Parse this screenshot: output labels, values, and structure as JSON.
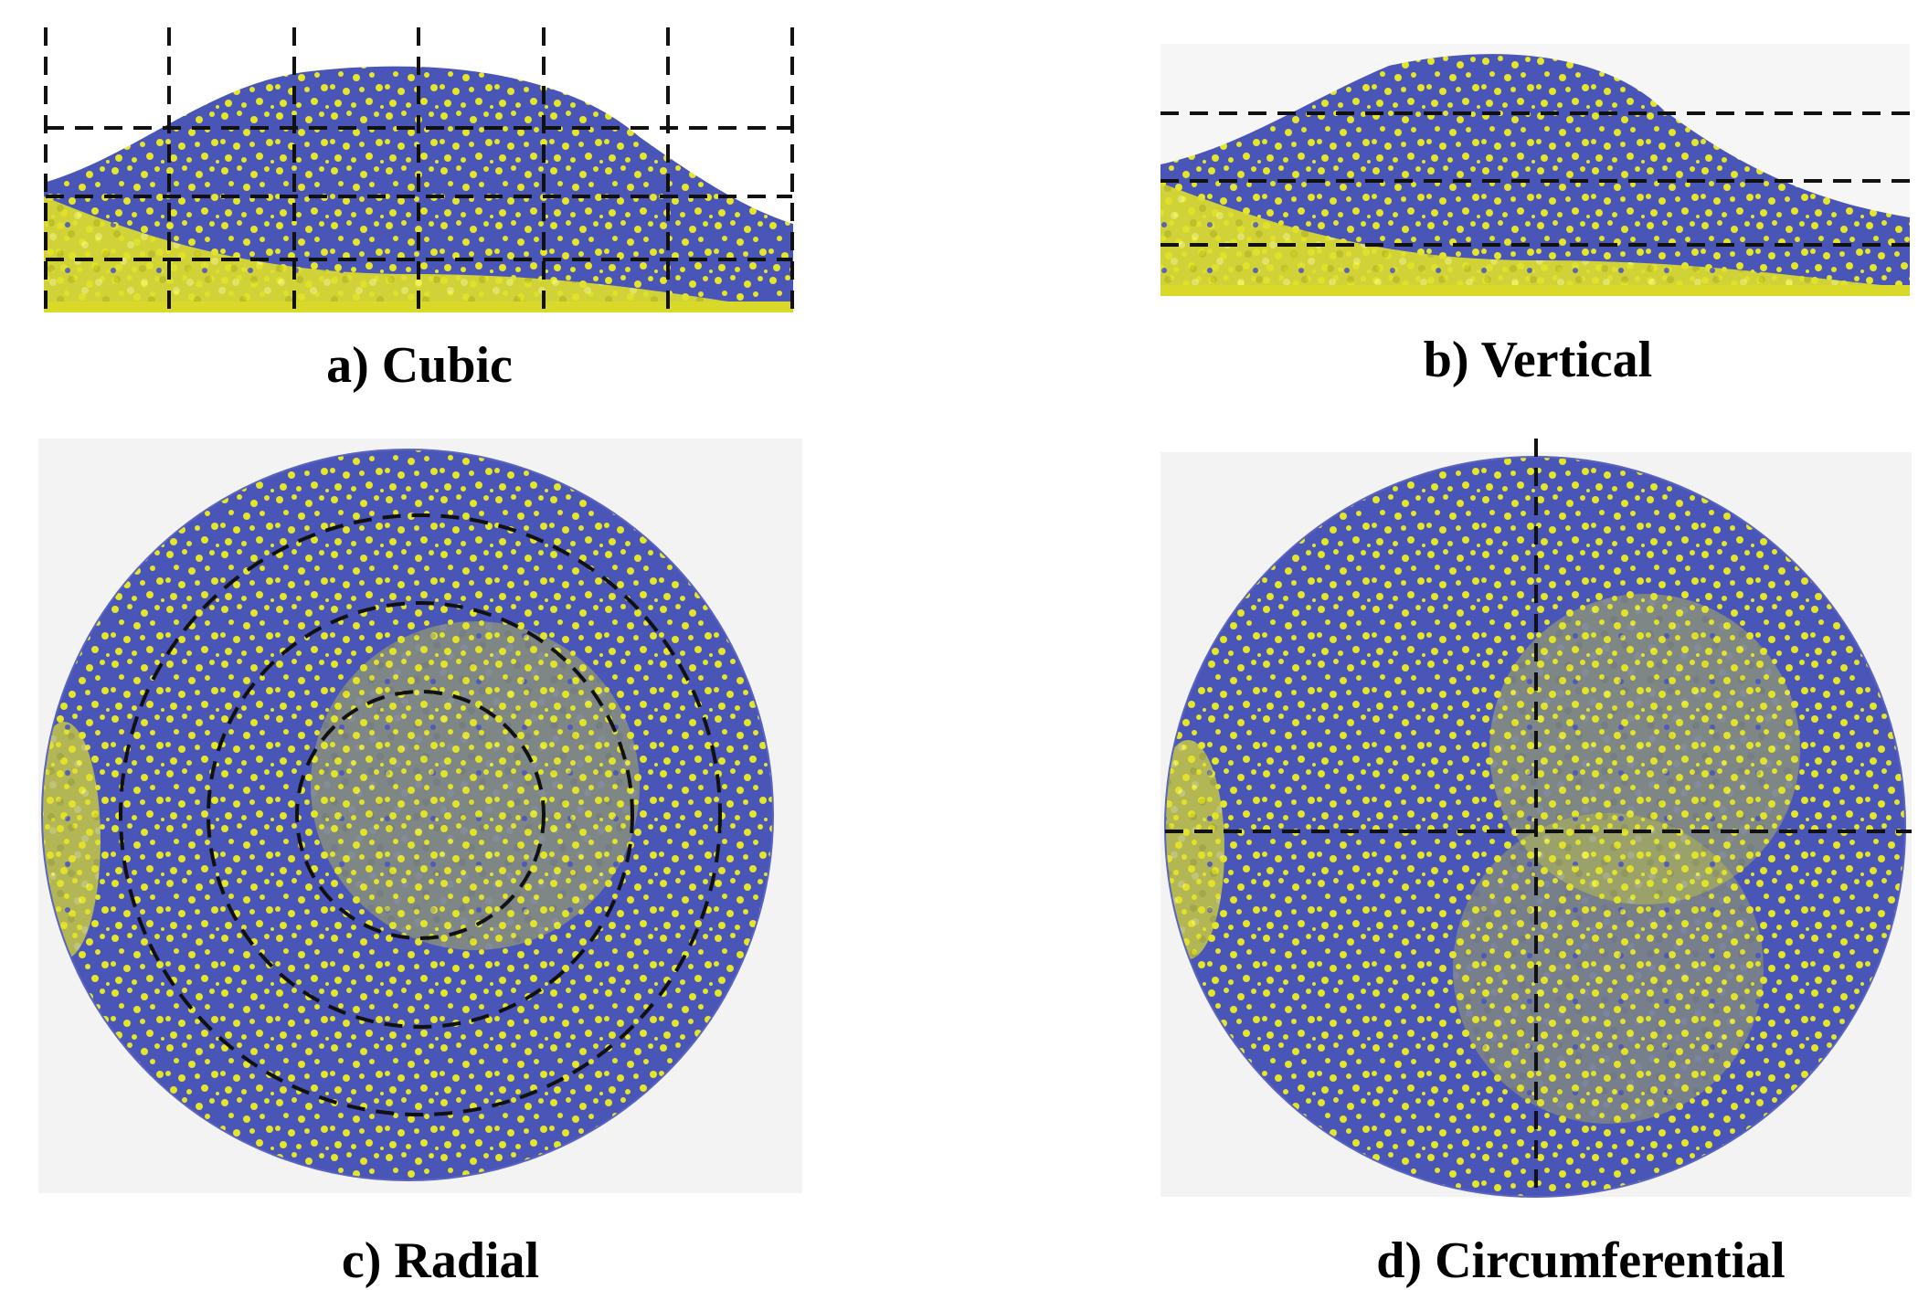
{
  "panels": [
    {
      "id": "a",
      "caption": "a) Cubic"
    },
    {
      "id": "b",
      "caption": "b) Vertical"
    },
    {
      "id": "c",
      "caption": "c) Radial"
    },
    {
      "id": "d",
      "caption": "d) Circumferential"
    }
  ],
  "colors": {
    "blue": "#4a55b8",
    "yellow": "#e4e627",
    "dash": "#111111"
  }
}
